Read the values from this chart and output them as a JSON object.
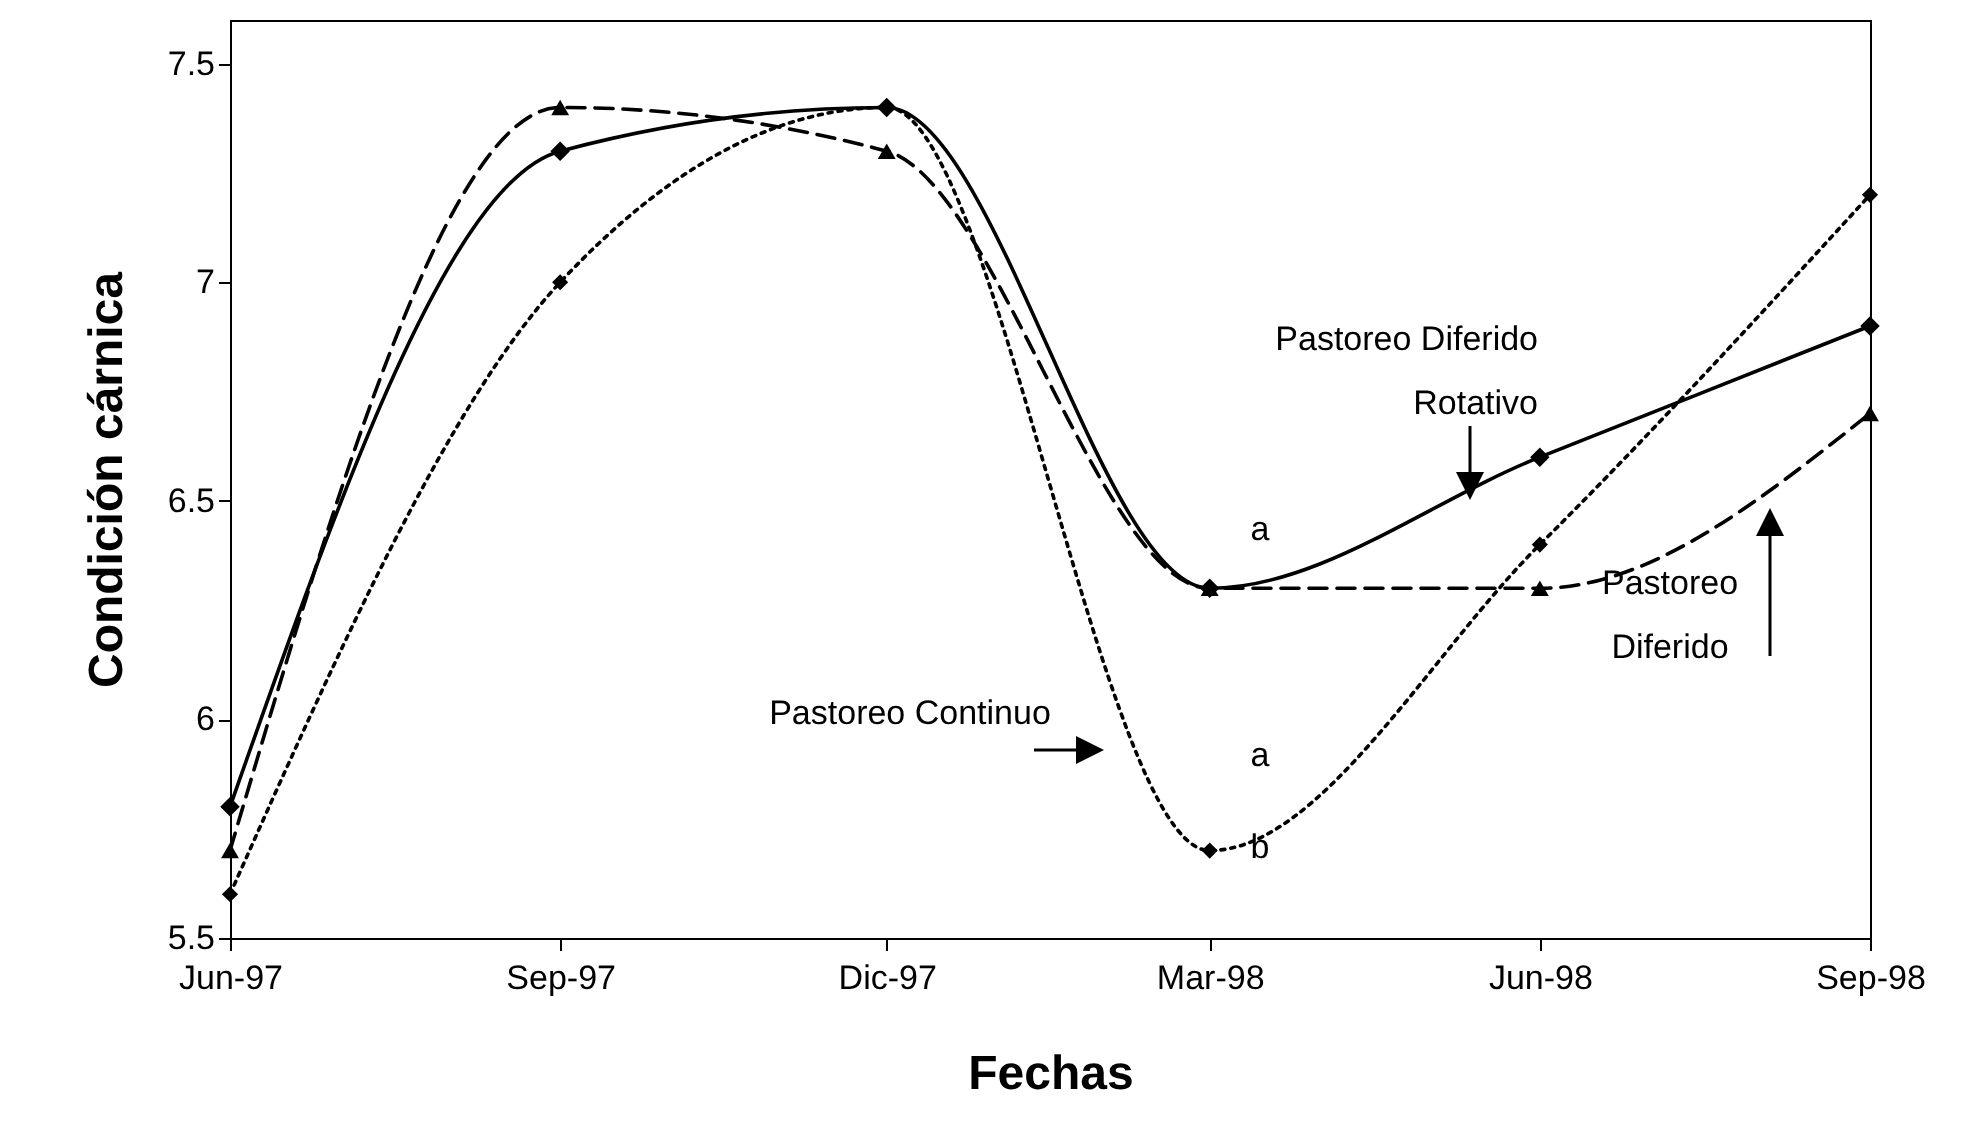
{
  "chart_data": {
    "type": "line",
    "xlabel": "Fechas",
    "ylabel": "Condición cárnica",
    "x": [
      "1997-06",
      "1997-09",
      "1997-12",
      "1998-03",
      "1998-06",
      "1998-09"
    ],
    "xlim": [
      "1997-06",
      "1998-09"
    ],
    "xticks": [
      {
        "value": "1997-06",
        "label": "Jun-97"
      },
      {
        "value": "1997-09",
        "label": "Sep-97"
      },
      {
        "value": "1997-12",
        "label": "Dic-97"
      },
      {
        "value": "1998-03",
        "label": "Mar-98"
      },
      {
        "value": "1998-06",
        "label": "Jun-98"
      },
      {
        "value": "1998-09",
        "label": "Sep-98"
      }
    ],
    "ylim": [
      5.5,
      7.6
    ],
    "yticks": [
      5.5,
      6,
      6.5,
      7,
      7.5
    ],
    "grid": false,
    "series": [
      {
        "name": "Pastoreo Diferido Rotativo",
        "color": "#000000",
        "line_style": "solid",
        "marker": "diamond",
        "values": [
          5.8,
          7.3,
          7.4,
          6.3,
          6.6,
          6.9
        ]
      },
      {
        "name": "Pastoreo Diferido",
        "color": "#000000",
        "line_style": "dashed",
        "marker": "triangle",
        "values": [
          5.7,
          7.4,
          7.3,
          6.3,
          6.3,
          6.7
        ]
      },
      {
        "name": "Pastoreo Continuo",
        "color": "#000000",
        "line_style": "dotted",
        "marker": "diamond",
        "values": [
          5.6,
          7.0,
          7.4,
          5.7,
          6.4,
          7.2
        ]
      }
    ],
    "annotations": [
      "a",
      "a",
      "b"
    ]
  }
}
